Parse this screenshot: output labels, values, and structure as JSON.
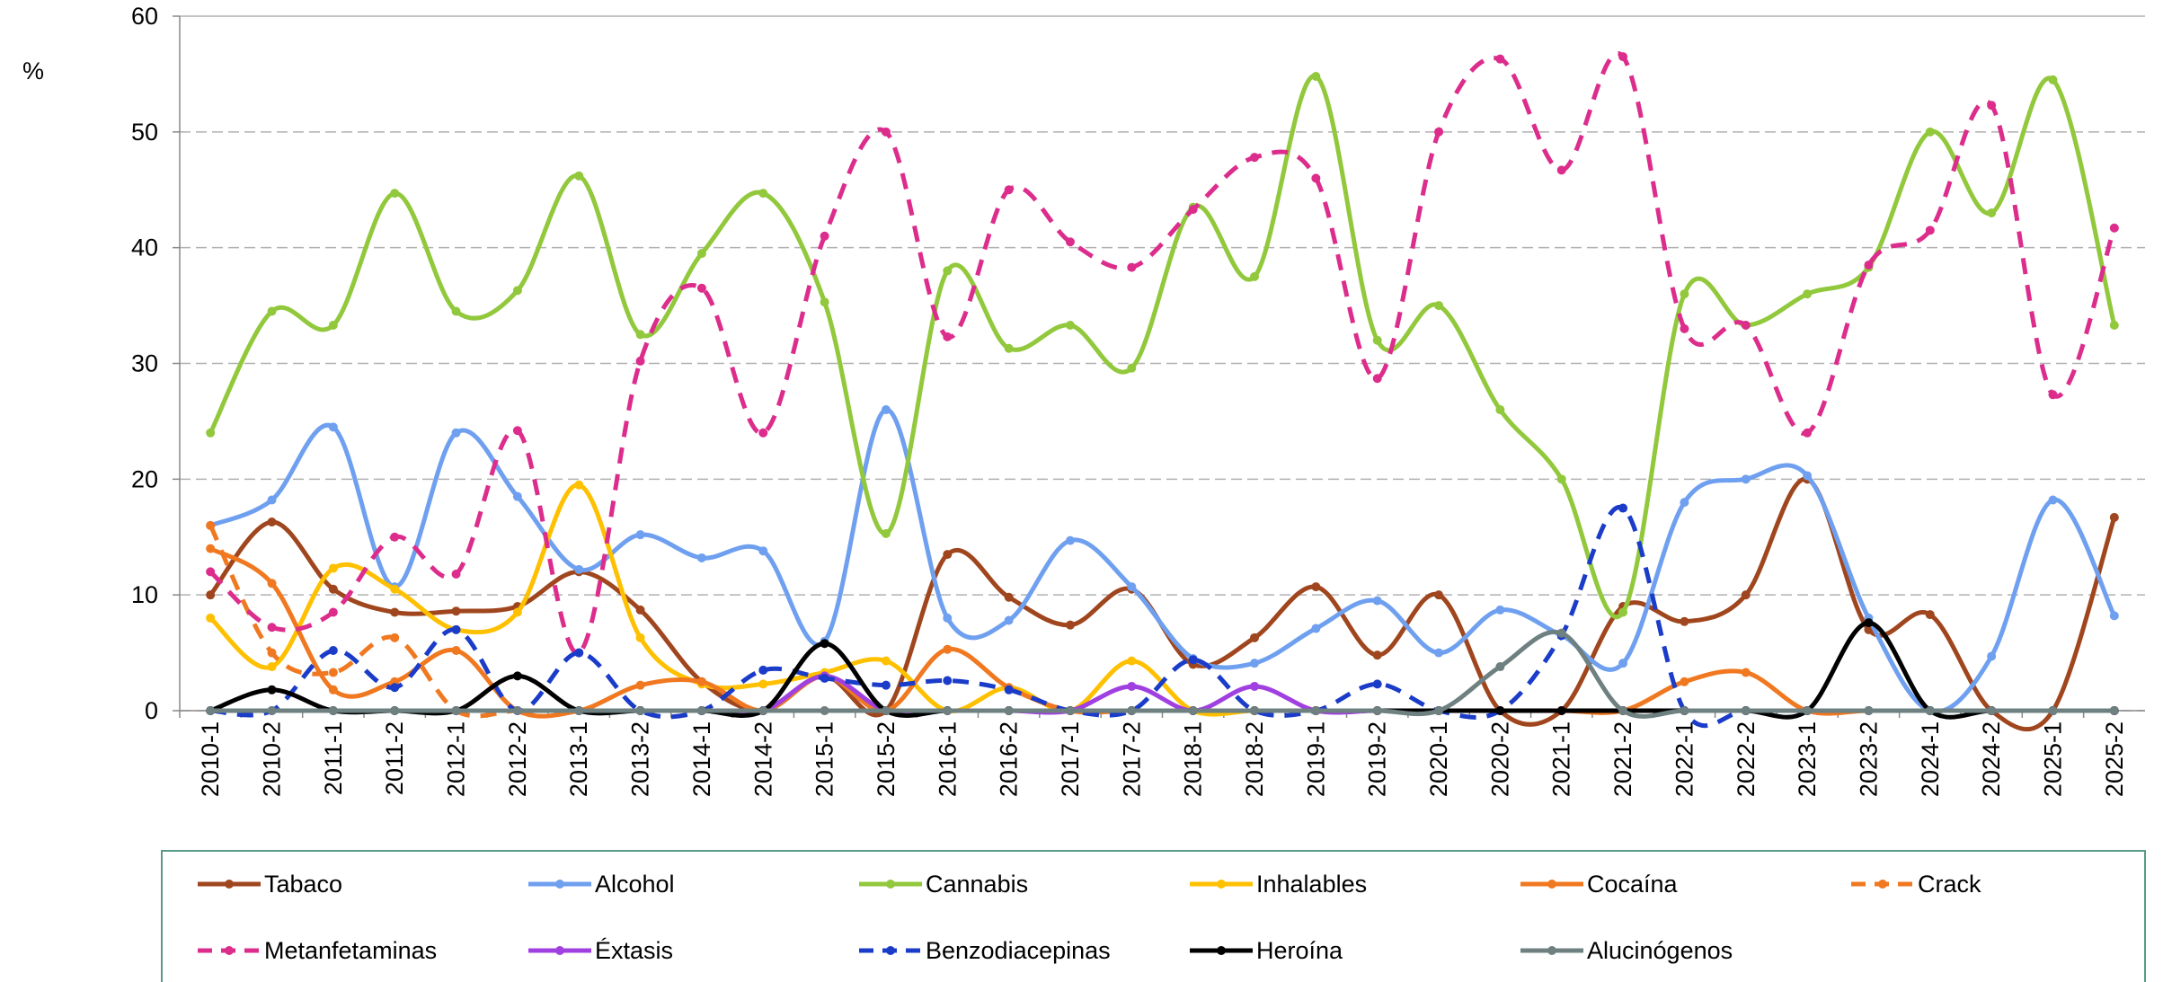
{
  "chart_data": {
    "type": "line",
    "y_label": "%",
    "categories": [
      "2010-1",
      "2010-2",
      "2011-1",
      "2011-2",
      "2012-1",
      "2012-2",
      "2013-1",
      "2013-2",
      "2014-1",
      "2014-2",
      "2015-1",
      "2015-2",
      "2016-1",
      "2016-2",
      "2017-1",
      "2017-2",
      "2018-1",
      "2018-2",
      "2019-1",
      "2019-2",
      "2020-1",
      "2020-2",
      "2021-1",
      "2021-2",
      "2022-1",
      "2022-2",
      "2023-1",
      "2023-2",
      "2024-1",
      "2024-2",
      "2025-1",
      "2025-2"
    ],
    "ylim": [
      0,
      60
    ],
    "yticks": [
      0,
      10,
      20,
      30,
      40,
      50,
      60
    ],
    "grid": true,
    "smooth": true,
    "legend": "bottom",
    "series": [
      {
        "name": "Tabaco",
        "color": "#a0461e",
        "dashed": false,
        "values": [
          10,
          16.3,
          10.5,
          8.5,
          8.6,
          9,
          12,
          8.7,
          2.5,
          0,
          3,
          0,
          13.5,
          9.8,
          7.4,
          10.5,
          4,
          6.3,
          10.7,
          4.8,
          10,
          0,
          0,
          9,
          7.7,
          10,
          20,
          7,
          8.3,
          0,
          0,
          16.7
        ]
      },
      {
        "name": "Alcohol",
        "color": "#6fa0f0",
        "dashed": false,
        "values": [
          16,
          18.2,
          24.5,
          10.7,
          24,
          18.5,
          12.2,
          15.2,
          13.2,
          13.8,
          6,
          26,
          8,
          7.8,
          14.7,
          10.7,
          4.5,
          4.1,
          7.1,
          9.5,
          5,
          8.7,
          6.5,
          4.1,
          18,
          20,
          20.3,
          8,
          0,
          4.7,
          18.2,
          8.2
        ]
      },
      {
        "name": "Cannabis",
        "color": "#92c83c",
        "dashed": false,
        "values": [
          24,
          34.5,
          33.3,
          44.7,
          34.5,
          36.3,
          46.2,
          32.5,
          39.5,
          44.7,
          35.3,
          15.3,
          38,
          31.3,
          33.3,
          29.6,
          43.5,
          37.5,
          54.8,
          32,
          35,
          26,
          20,
          8.5,
          36,
          33.3,
          36,
          38.3,
          50,
          43,
          54.5,
          33.3
        ]
      },
      {
        "name": "Inhalables",
        "color": "#ffc000",
        "dashed": false,
        "values": [
          8,
          3.8,
          12.3,
          10.5,
          7,
          8.5,
          19.5,
          6.3,
          2.3,
          2.3,
          3.3,
          4.3,
          0,
          2,
          0,
          4.3,
          0,
          0,
          0,
          0,
          0,
          0,
          0,
          0,
          0,
          0,
          0,
          0,
          0,
          0,
          0,
          0
        ]
      },
      {
        "name": "Cocaína",
        "color": "#f07820",
        "dashed": false,
        "values": [
          14,
          11,
          1.8,
          2.5,
          5.2,
          0,
          0,
          2.2,
          2.5,
          0,
          3,
          0,
          5.3,
          2,
          0,
          0,
          0,
          0,
          0,
          0,
          0,
          0,
          0,
          0,
          2.5,
          3.3,
          0,
          0,
          0,
          0,
          0,
          0
        ]
      },
      {
        "name": "Crack",
        "color": "#f07820",
        "dashed": true,
        "values": [
          16,
          5,
          3.3,
          6.3,
          0,
          0,
          0,
          0,
          0,
          0,
          0,
          0,
          0,
          0,
          0,
          0,
          0,
          0,
          0,
          0,
          0,
          0,
          0,
          0,
          0,
          0,
          0,
          0,
          0,
          0,
          0,
          0
        ]
      },
      {
        "name": "Metanfetaminas",
        "color": "#dc2d8c",
        "dashed": true,
        "values": [
          12,
          7.2,
          8.5,
          15,
          11.8,
          24.2,
          5,
          30.2,
          36.5,
          24,
          41,
          50,
          32.3,
          45,
          40.5,
          38.3,
          43.3,
          47.8,
          46,
          28.7,
          50,
          56.3,
          46.7,
          56.5,
          33,
          33.3,
          24,
          38.5,
          41.5,
          52.3,
          27.3,
          41.7
        ]
      },
      {
        "name": "Éxtasis",
        "color": "#a040e0",
        "dashed": false,
        "values": [
          0,
          0,
          0,
          0,
          0,
          0,
          0,
          0,
          0,
          0,
          3,
          0,
          0,
          0,
          0,
          2.1,
          0,
          2.1,
          0,
          0,
          0,
          0,
          0,
          0,
          0,
          0,
          0,
          0,
          0,
          0,
          0,
          0
        ]
      },
      {
        "name": "Benzodiacepinas",
        "color": "#1a3cc8",
        "dashed": true,
        "values": [
          0,
          0,
          5.2,
          2,
          7,
          0,
          5,
          0,
          0,
          3.5,
          2.8,
          2.2,
          2.6,
          1.8,
          0,
          0,
          4.4,
          0,
          0,
          2.3,
          0,
          0,
          6.5,
          17.5,
          0,
          0,
          0,
          0,
          0,
          0,
          0,
          0
        ]
      },
      {
        "name": "Heroína",
        "color": "#000000",
        "dashed": false,
        "values": [
          0,
          1.8,
          0,
          0,
          0,
          3,
          0,
          0,
          0,
          0,
          5.8,
          0,
          0,
          0,
          0,
          0,
          0,
          0,
          0,
          0,
          0,
          0,
          0,
          0,
          0,
          0,
          0,
          7.6,
          0,
          0,
          0,
          0
        ]
      },
      {
        "name": "Alucinógenos",
        "color": "#6e8080",
        "dashed": false,
        "values": [
          0,
          0,
          0,
          0,
          0,
          0,
          0,
          0,
          0,
          0,
          0,
          0,
          0,
          0,
          0,
          0,
          0,
          0,
          0,
          0,
          0,
          3.8,
          6.7,
          0,
          0,
          0,
          0,
          0,
          0,
          0,
          0,
          0
        ]
      }
    ]
  }
}
